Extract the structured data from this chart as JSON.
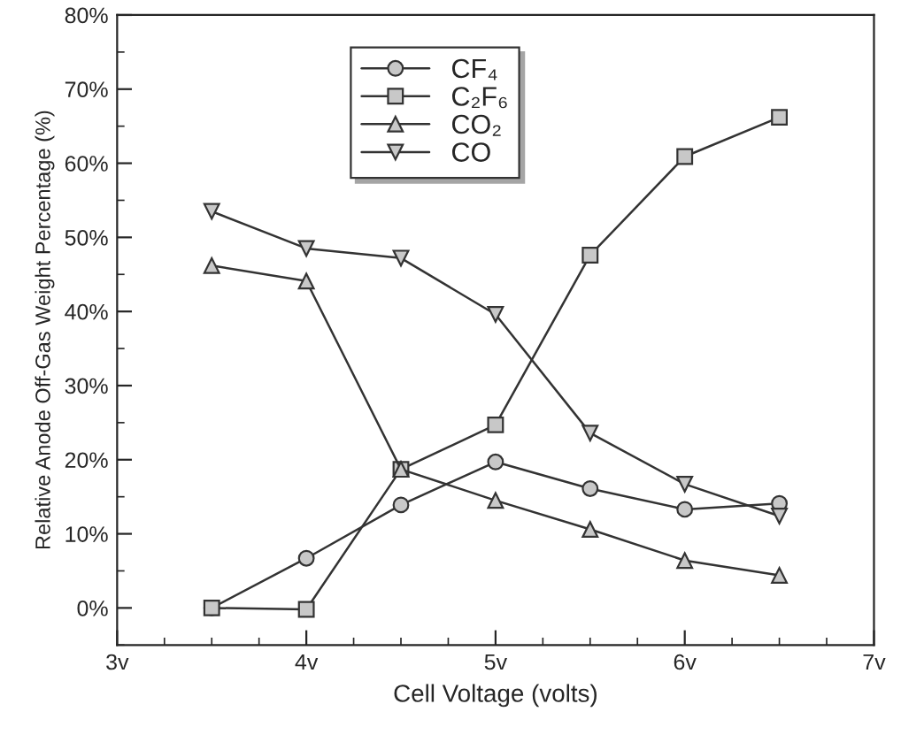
{
  "chart_data": {
    "type": "line",
    "xlabel": "Cell Voltage (volts)",
    "ylabel": "Relative Anode Off-Gas Weight Percentage (%)",
    "x": [
      3.5,
      4,
      4.5,
      5,
      5.5,
      6,
      6.5
    ],
    "series": [
      {
        "name": "CF₄",
        "color": "#333333",
        "marker": "circle",
        "values": [
          0,
          6.7,
          13.9,
          19.7,
          16.1,
          13.3,
          14.1
        ]
      },
      {
        "name": "C₂F₆",
        "color": "#333333",
        "marker": "square",
        "values": [
          0,
          -0.2,
          18.7,
          24.7,
          47.6,
          60.9,
          66.2
        ]
      },
      {
        "name": "CO₂",
        "color": "#333333",
        "marker": "triangle",
        "values": [
          46.2,
          44.1,
          18.7,
          14.5,
          10.6,
          6.4,
          4.4
        ]
      },
      {
        "name": "CO",
        "color": "#333333",
        "marker": "triangle_down",
        "values": [
          53.5,
          48.5,
          47.2,
          39.6,
          23.6,
          16.7,
          12.4
        ]
      }
    ],
    "xlim": [
      3,
      7
    ],
    "xticks": [
      {
        "value": 3,
        "label": "3v"
      },
      {
        "value": 4,
        "label": "4v"
      },
      {
        "value": 5,
        "label": "5v"
      },
      {
        "value": 6,
        "label": "6v"
      },
      {
        "value": 7,
        "label": "7v"
      }
    ],
    "ylim": [
      -5,
      80
    ],
    "yticks": [
      {
        "value": 0,
        "label": "0%"
      },
      {
        "value": 10,
        "label": "10%"
      },
      {
        "value": 20,
        "label": "20%"
      },
      {
        "value": 30,
        "label": "30%"
      },
      {
        "value": 40,
        "label": "40%"
      },
      {
        "value": 50,
        "label": "50%"
      },
      {
        "value": 60,
        "label": "60%"
      },
      {
        "value": 70,
        "label": "70%"
      },
      {
        "value": 80,
        "label": "80%"
      }
    ],
    "line_style": "solid",
    "grid": false,
    "legend": "top"
  }
}
